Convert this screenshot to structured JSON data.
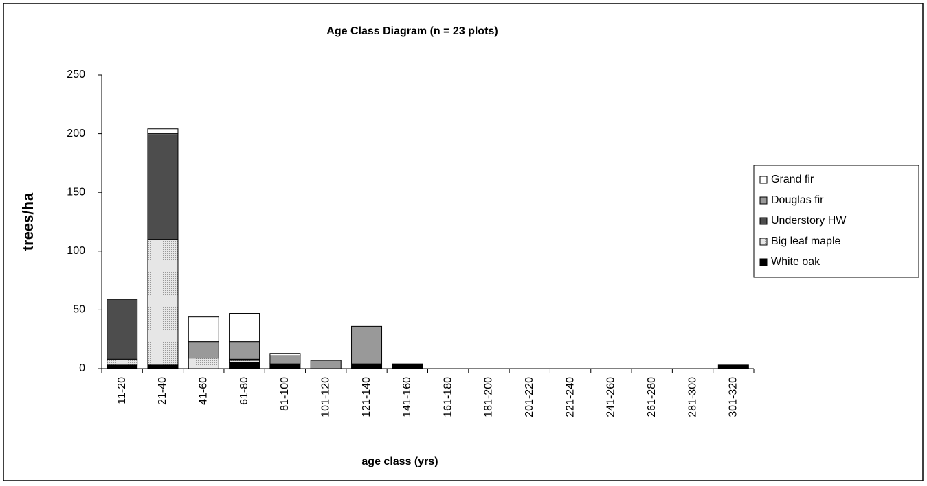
{
  "chart_data": {
    "type": "stacked_bar",
    "title": "Age Class Diagram (n = 23 plots)",
    "x_label": "age class (yrs)",
    "y_label": "trees/ha",
    "categories": [
      "11-20",
      "21-40",
      "41-60",
      "61-80",
      "81-100",
      "101-120",
      "121-140",
      "141-160",
      "161-180",
      "181-200",
      "201-220",
      "221-240",
      "241-260",
      "261-280",
      "281-300",
      "301-320"
    ],
    "series": [
      {
        "name": "Grand fir",
        "color": "#ffffff",
        "values": [
          0,
          4,
          21,
          24,
          2,
          0,
          0,
          0,
          0,
          0,
          0,
          0,
          0,
          0,
          0,
          0
        ]
      },
      {
        "name": "Douglas fir",
        "color": "#999999",
        "values": [
          0,
          1,
          14,
          15,
          7,
          7,
          32,
          0,
          0,
          0,
          0,
          0,
          0,
          0,
          0,
          0
        ]
      },
      {
        "name": "Understory HW",
        "color": "#4d4d4d",
        "values": [
          51,
          89,
          0,
          1,
          0,
          0,
          0,
          0,
          0,
          0,
          0,
          0,
          0,
          0,
          0,
          0
        ]
      },
      {
        "name": "Big leaf maple",
        "color": "#dcdcdc",
        "values": [
          5,
          107,
          9,
          2,
          0,
          0,
          0,
          0,
          0,
          0,
          0,
          0,
          0,
          0,
          0,
          0
        ]
      },
      {
        "name": "White oak",
        "color": "#000000",
        "values": [
          3,
          3,
          0,
          5,
          4,
          0,
          4,
          4,
          0,
          0,
          0,
          0,
          0,
          0,
          0,
          3
        ]
      }
    ],
    "ylim": [
      0,
      250
    ],
    "yticks": [
      0,
      50,
      100,
      150,
      200,
      250
    ],
    "grid": false,
    "legend": "right"
  }
}
